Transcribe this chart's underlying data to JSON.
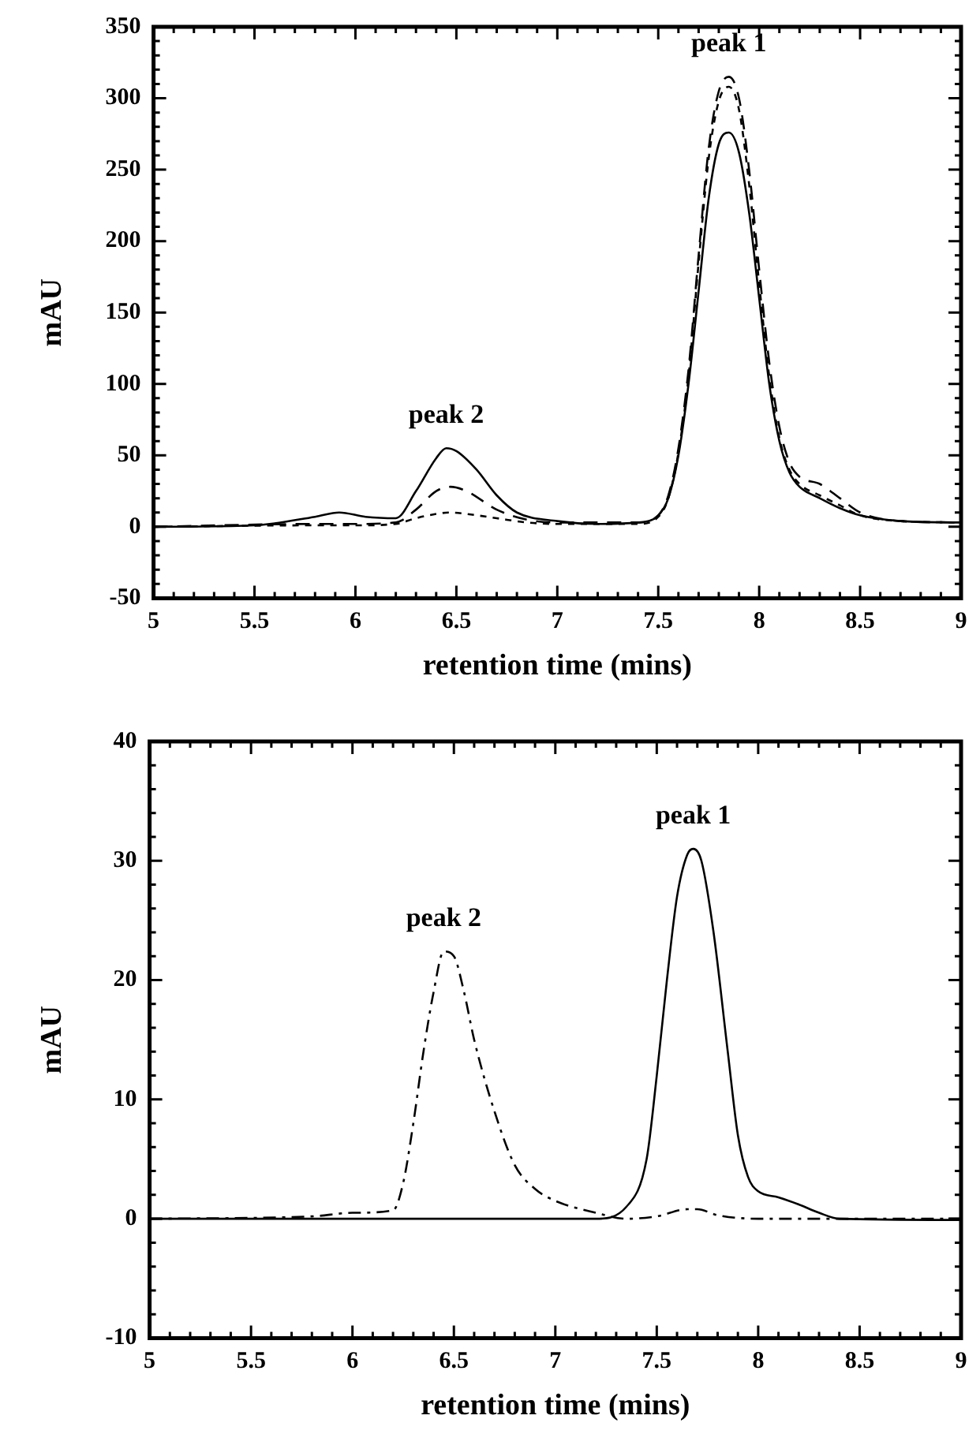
{
  "chart_data": [
    {
      "type": "line",
      "xlabel": "retention time (mins)",
      "ylabel": "mAU",
      "xlim": [
        5,
        9
      ],
      "ylim": [
        -50,
        350
      ],
      "xticks": [
        5,
        5.5,
        6,
        6.5,
        7,
        7.5,
        8,
        8.5,
        9
      ],
      "yticks": [
        -50,
        0,
        50,
        100,
        150,
        200,
        250,
        300,
        350
      ],
      "grid": false,
      "legend": false,
      "annotations": [
        {
          "text": "peak 1",
          "x": 7.85,
          "y": 315
        },
        {
          "text": "peak 2",
          "x": 6.45,
          "y": 55
        }
      ],
      "series": [
        {
          "color": "#000000",
          "line_style": "solid",
          "x": [
            5,
            5.5,
            5.8,
            5.92,
            6.05,
            6.2,
            6.3,
            6.4,
            6.45,
            6.5,
            6.6,
            6.7,
            6.8,
            7,
            7.2,
            7.4,
            7.5,
            7.55,
            7.6,
            7.65,
            7.7,
            7.75,
            7.8,
            7.85,
            7.9,
            7.95,
            8,
            8.05,
            8.1,
            8.15,
            8.2,
            8.3,
            8.4,
            8.5,
            8.7,
            9
          ],
          "values": [
            0,
            1,
            7,
            10,
            7,
            6,
            25,
            48,
            55,
            53,
            40,
            22,
            10,
            4,
            2,
            3,
            8,
            20,
            50,
            100,
            165,
            230,
            268,
            276,
            262,
            220,
            160,
            100,
            60,
            38,
            28,
            20,
            13,
            8,
            4,
            3
          ]
        },
        {
          "color": "#000000",
          "line_style": "dashed",
          "x": [
            5,
            5.8,
            6,
            6.2,
            6.3,
            6.4,
            6.47,
            6.55,
            6.7,
            6.85,
            7,
            7.4,
            7.5,
            7.55,
            7.6,
            7.65,
            7.7,
            7.75,
            7.8,
            7.85,
            7.9,
            7.95,
            8,
            8.05,
            8.1,
            8.15,
            8.2,
            8.3,
            8.4,
            8.5,
            8.7,
            9
          ],
          "values": [
            0,
            2,
            2,
            3,
            12,
            25,
            28,
            25,
            12,
            5,
            3,
            3,
            8,
            22,
            55,
            110,
            190,
            265,
            305,
            315,
            300,
            250,
            180,
            115,
            70,
            45,
            35,
            30,
            20,
            10,
            4,
            3
          ]
        },
        {
          "color": "#000000",
          "line_style": "dotted",
          "x": [
            5,
            5.8,
            6,
            6.2,
            6.3,
            6.4,
            6.47,
            6.55,
            6.7,
            6.85,
            7,
            7.4,
            7.5,
            7.55,
            7.6,
            7.65,
            7.7,
            7.75,
            7.8,
            7.85,
            7.9,
            7.95,
            8,
            8.05,
            8.1,
            8.15,
            8.2,
            8.3,
            8.4,
            8.5,
            8.7,
            9
          ],
          "values": [
            0,
            1,
            1,
            2,
            6,
            9,
            10,
            9,
            6,
            3,
            2,
            2,
            7,
            20,
            52,
            105,
            185,
            258,
            298,
            308,
            292,
            240,
            170,
            105,
            62,
            40,
            30,
            22,
            15,
            8,
            4,
            3
          ]
        }
      ]
    },
    {
      "type": "line",
      "xlabel": "retention time (mins)",
      "ylabel": "mAU",
      "xlim": [
        5,
        9
      ],
      "ylim": [
        -10,
        40
      ],
      "xticks": [
        5,
        5.5,
        6,
        6.5,
        7,
        7.5,
        8,
        8.5,
        9
      ],
      "yticks": [
        -10,
        0,
        10,
        20,
        30,
        40
      ],
      "grid": false,
      "legend": false,
      "annotations": [
        {
          "text": "peak 1",
          "x": 7.68,
          "y": 31
        },
        {
          "text": "peak 2",
          "x": 6.45,
          "y": 22.4
        }
      ],
      "series": [
        {
          "color": "#000000",
          "line_style": "solid",
          "x": [
            5,
            7.2,
            7.35,
            7.45,
            7.5,
            7.55,
            7.6,
            7.65,
            7.68,
            7.72,
            7.78,
            7.85,
            7.9,
            7.95,
            8,
            8.1,
            8.2,
            8.3,
            8.4,
            9
          ],
          "values": [
            0,
            0,
            1,
            5,
            12,
            20,
            27,
            30.5,
            31,
            30,
            24,
            14,
            7,
            3.5,
            2.3,
            1.8,
            1.2,
            0.5,
            0,
            -0.1
          ]
        },
        {
          "color": "#000000",
          "line_style": "dashdot",
          "x": [
            5,
            5.8,
            6,
            6.2,
            6.25,
            6.3,
            6.35,
            6.4,
            6.45,
            6.5,
            6.55,
            6.6,
            6.7,
            6.8,
            6.9,
            7,
            7.2,
            7.35,
            7.5,
            7.65,
            7.7,
            7.8,
            8,
            9
          ],
          "values": [
            0,
            0.2,
            0.5,
            0.7,
            3,
            8,
            14,
            19,
            22.4,
            22,
            19,
            15,
            9,
            4.5,
            2.5,
            1.5,
            0.5,
            0,
            0.2,
            0.8,
            0.8,
            0.3,
            0,
            0
          ]
        }
      ]
    }
  ]
}
